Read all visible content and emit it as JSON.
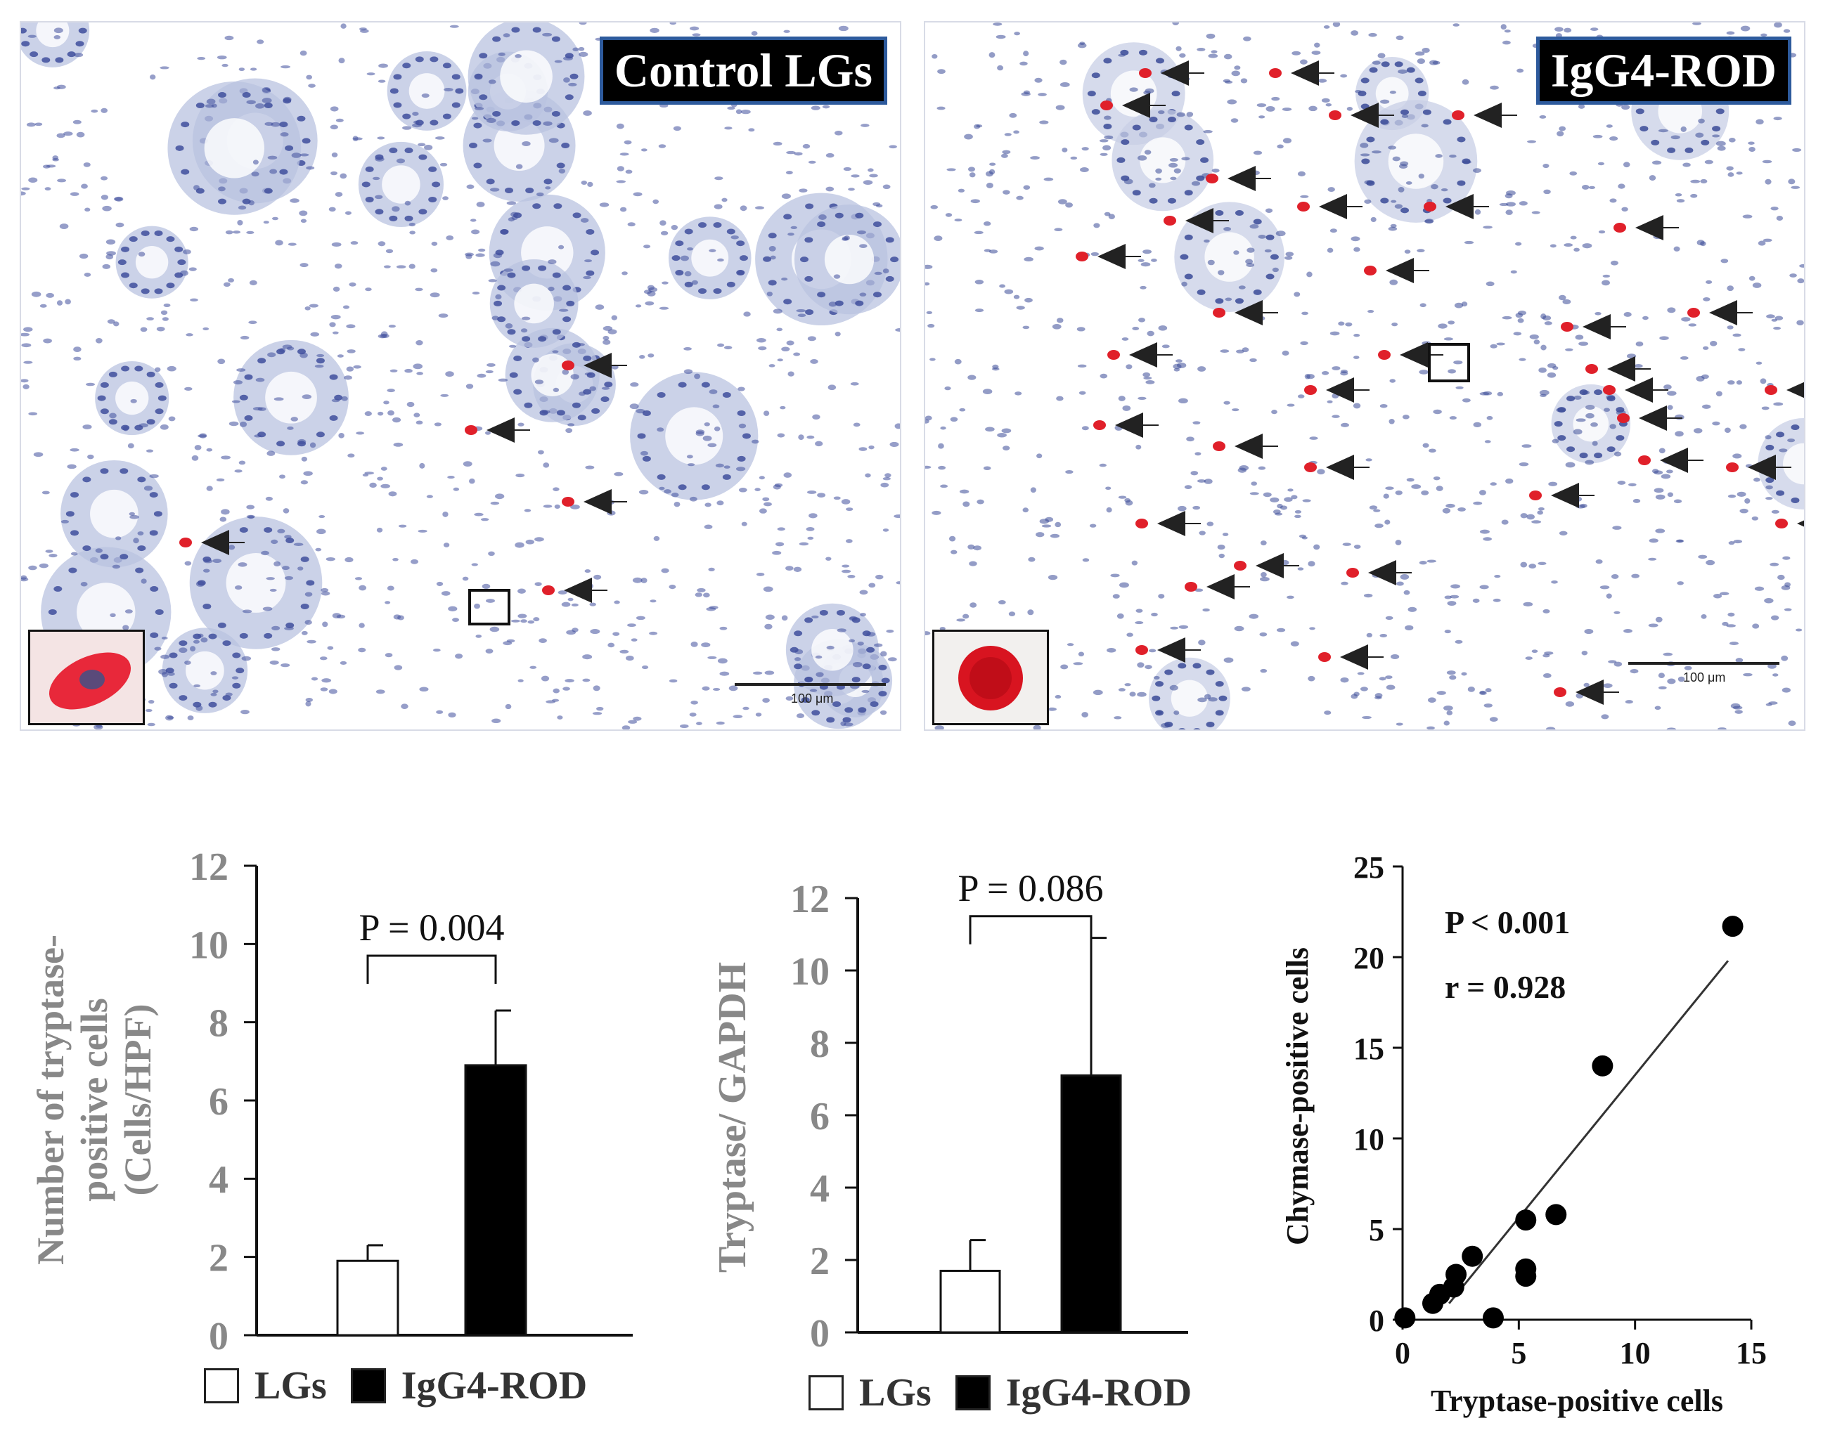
{
  "micrographs": {
    "left": {
      "label": "Control LGs",
      "scale": "100 μm",
      "tissue_color": "#b9c3e0",
      "nucleus_color": "#3f4f9c",
      "stain_color": "#e0202a"
    },
    "right": {
      "label": "IgG4-ROD",
      "scale": "100 μm",
      "tissue_color": "#c8cfe6",
      "nucleus_color": "#3a4a98",
      "stain_color": "#e0202a"
    }
  },
  "legend": [
    {
      "label": "LGs",
      "fill": "#ffffff"
    },
    {
      "label": "IgG4-ROD",
      "fill": "#000000"
    }
  ],
  "chart_data": [
    {
      "type": "bar",
      "categories": [
        "LGs",
        "IgG4-ROD"
      ],
      "values": [
        1.9,
        6.9
      ],
      "errors": [
        0.4,
        1.4
      ],
      "ylabel_lines": [
        "Number of tryptase-",
        "positive cells",
        "(Cells/HPF)"
      ],
      "ylim": [
        0,
        12
      ],
      "yticks": [
        "0",
        "2",
        "4",
        "6",
        "8",
        "10",
        "12"
      ],
      "annotation": "P = 0.004",
      "bracket_height": 9.7,
      "colors": [
        "#ffffff",
        "#000000"
      ]
    },
    {
      "type": "bar",
      "categories": [
        "LGs",
        "IgG4-ROD"
      ],
      "values": [
        1.7,
        7.1
      ],
      "errors": [
        0.85,
        3.8
      ],
      "ylabel": "Tryptase/ GAPDH",
      "ylim": [
        0,
        12
      ],
      "yticks": [
        "0",
        "2",
        "4",
        "6",
        "8",
        "10",
        "12"
      ],
      "annotation": "P = 0.086",
      "bracket_height": 11.5,
      "colors": [
        "#ffffff",
        "#000000"
      ]
    },
    {
      "type": "scatter",
      "xlabel": "Tryptase-positive cells",
      "ylabel": "Chymase-positive cells",
      "xlim": [
        0,
        15
      ],
      "ylim": [
        0,
        25
      ],
      "xticks": [
        "0",
        "5",
        "10",
        "15"
      ],
      "yticks": [
        "0",
        "5",
        "10",
        "15",
        "20",
        "25"
      ],
      "annotations": [
        "P < 0.001",
        "r = 0.928"
      ],
      "points": [
        {
          "x": 0.1,
          "y": 0.1
        },
        {
          "x": 1.3,
          "y": 0.9
        },
        {
          "x": 1.6,
          "y": 1.4
        },
        {
          "x": 2.2,
          "y": 1.8
        },
        {
          "x": 2.3,
          "y": 2.5
        },
        {
          "x": 3.0,
          "y": 3.5
        },
        {
          "x": 3.9,
          "y": 0.1
        },
        {
          "x": 5.3,
          "y": 2.4
        },
        {
          "x": 5.3,
          "y": 2.8
        },
        {
          "x": 5.3,
          "y": 5.5
        },
        {
          "x": 6.6,
          "y": 5.8
        },
        {
          "x": 8.6,
          "y": 14.0
        },
        {
          "x": 14.2,
          "y": 21.7
        }
      ],
      "trendline": {
        "x": [
          2.0,
          14.0
        ],
        "y": [
          0.9,
          19.8
        ]
      }
    }
  ]
}
